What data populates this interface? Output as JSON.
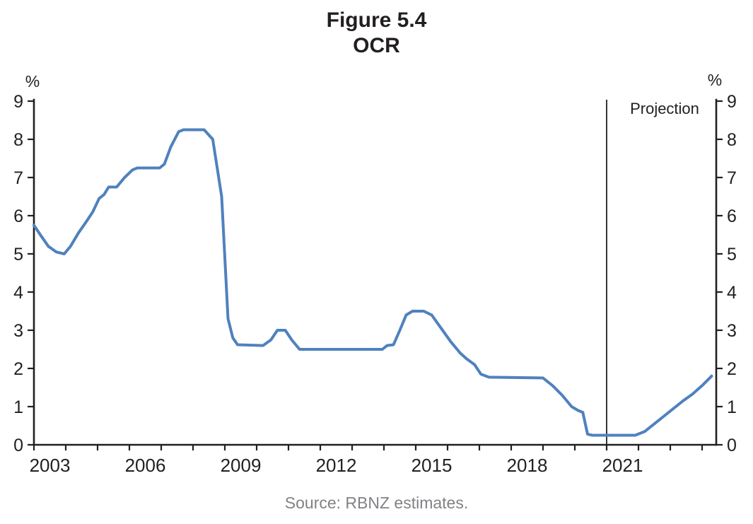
{
  "figure": {
    "title_line1": "Figure 5.4",
    "title_line2": "OCR",
    "left_axis_unit": "%",
    "right_axis_unit": "%",
    "projection_label": "Projection",
    "source": "Source: RBNZ estimates."
  },
  "colors": {
    "line": "#4f81bd",
    "axis": "#231f20",
    "tick_label": "#231f20",
    "projection_line": "#231f20",
    "source_text": "#808285",
    "background": "#ffffff"
  },
  "chart_data": {
    "type": "line",
    "title": "Figure 5.4 OCR",
    "xlabel": "",
    "ylabel": "%",
    "ylim": [
      0,
      9
    ],
    "xlim": [
      2003,
      2024.45
    ],
    "grid": false,
    "legend_position": "none",
    "y_ticks": [
      0,
      1,
      2,
      3,
      4,
      5,
      6,
      7,
      8,
      9
    ],
    "x_tick_labels": [
      2003,
      2006,
      2009,
      2012,
      2015,
      2018,
      2021
    ],
    "x_minor_tick_step": 1,
    "projection_boundary_x": 2021,
    "series": [
      {
        "name": "OCR",
        "color": "#4f81bd",
        "points": [
          [
            2003.0,
            5.75
          ],
          [
            2003.2,
            5.5
          ],
          [
            2003.45,
            5.2
          ],
          [
            2003.7,
            5.05
          ],
          [
            2003.95,
            5.0
          ],
          [
            2004.15,
            5.2
          ],
          [
            2004.4,
            5.55
          ],
          [
            2004.65,
            5.85
          ],
          [
            2004.85,
            6.1
          ],
          [
            2005.05,
            6.45
          ],
          [
            2005.2,
            6.55
          ],
          [
            2005.35,
            6.75
          ],
          [
            2005.6,
            6.75
          ],
          [
            2005.85,
            7.0
          ],
          [
            2006.1,
            7.2
          ],
          [
            2006.25,
            7.25
          ],
          [
            2006.95,
            7.25
          ],
          [
            2007.1,
            7.35
          ],
          [
            2007.3,
            7.8
          ],
          [
            2007.55,
            8.2
          ],
          [
            2007.7,
            8.25
          ],
          [
            2008.35,
            8.25
          ],
          [
            2008.62,
            8.0
          ],
          [
            2008.9,
            6.5
          ],
          [
            2009.1,
            3.3
          ],
          [
            2009.25,
            2.8
          ],
          [
            2009.4,
            2.62
          ],
          [
            2010.2,
            2.6
          ],
          [
            2010.45,
            2.75
          ],
          [
            2010.65,
            3.0
          ],
          [
            2010.9,
            3.0
          ],
          [
            2011.1,
            2.75
          ],
          [
            2011.35,
            2.5
          ],
          [
            2013.95,
            2.5
          ],
          [
            2014.1,
            2.6
          ],
          [
            2014.3,
            2.62
          ],
          [
            2014.5,
            3.0
          ],
          [
            2014.7,
            3.4
          ],
          [
            2014.9,
            3.5
          ],
          [
            2015.25,
            3.5
          ],
          [
            2015.5,
            3.4
          ],
          [
            2015.8,
            3.05
          ],
          [
            2016.1,
            2.7
          ],
          [
            2016.4,
            2.4
          ],
          [
            2016.6,
            2.25
          ],
          [
            2016.85,
            2.1
          ],
          [
            2017.05,
            1.85
          ],
          [
            2017.3,
            1.77
          ],
          [
            2019.0,
            1.75
          ],
          [
            2019.3,
            1.55
          ],
          [
            2019.6,
            1.3
          ],
          [
            2019.9,
            1.0
          ],
          [
            2020.1,
            0.9
          ],
          [
            2020.25,
            0.85
          ],
          [
            2020.4,
            0.28
          ],
          [
            2020.55,
            0.25
          ],
          [
            2021.9,
            0.25
          ],
          [
            2022.2,
            0.35
          ],
          [
            2022.5,
            0.55
          ],
          [
            2022.8,
            0.75
          ],
          [
            2023.1,
            0.95
          ],
          [
            2023.4,
            1.15
          ],
          [
            2023.7,
            1.33
          ],
          [
            2024.0,
            1.55
          ],
          [
            2024.3,
            1.8
          ]
        ]
      }
    ]
  }
}
